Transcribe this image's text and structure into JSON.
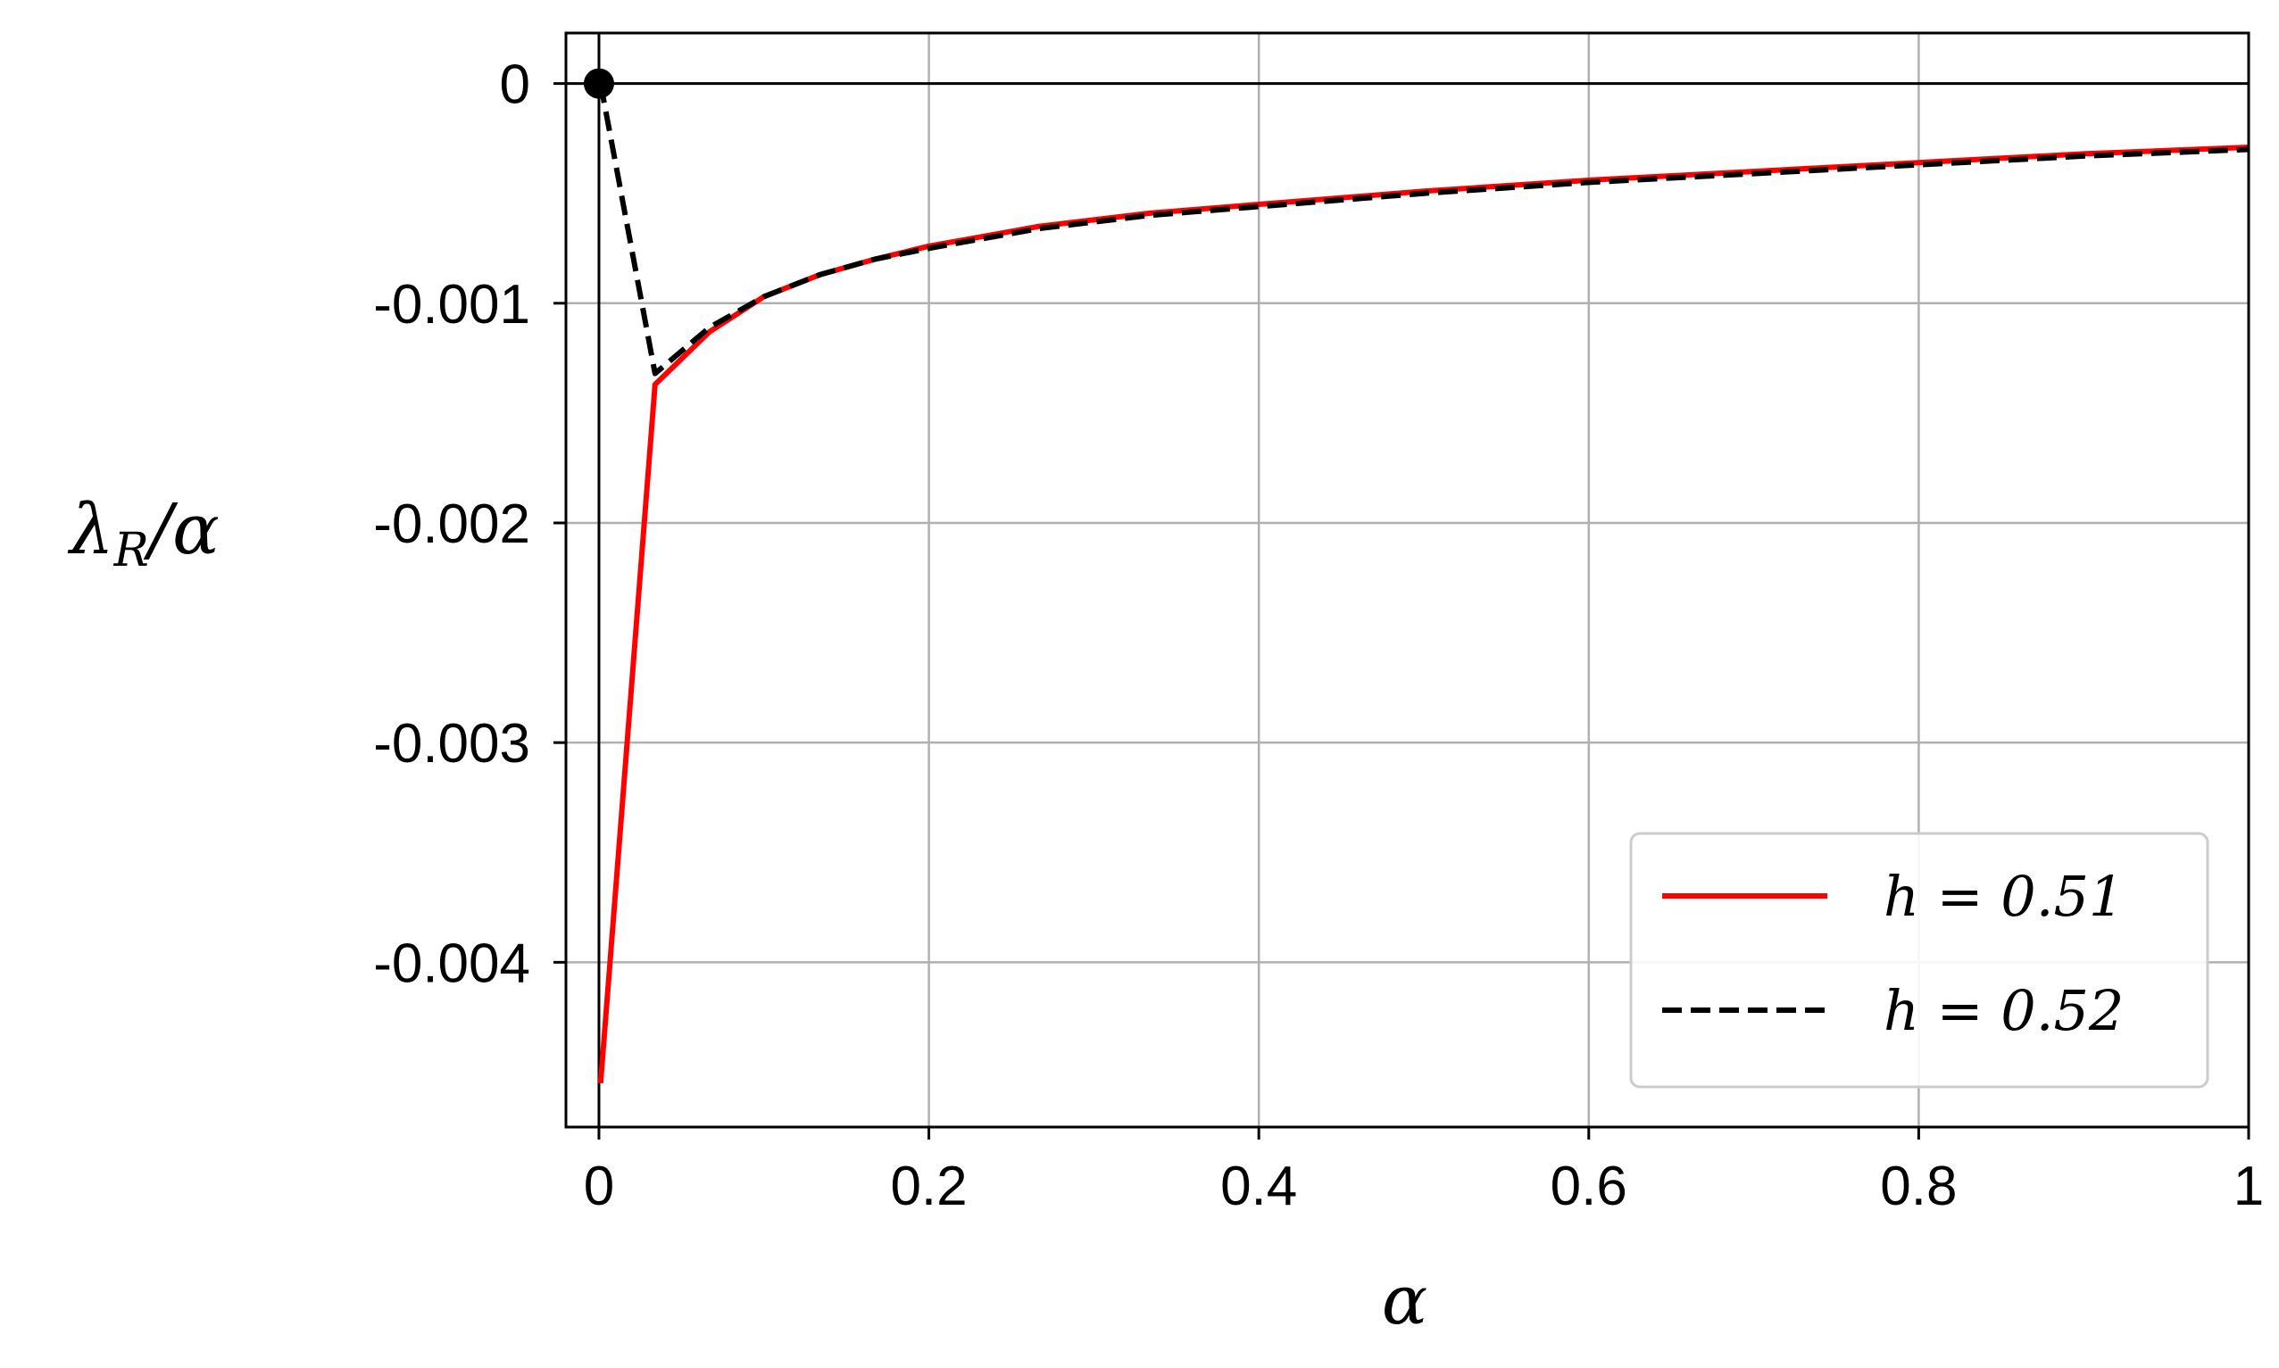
{
  "chart_data": {
    "type": "line",
    "title": "",
    "xlabel": "α",
    "ylabel": "λR/α",
    "xlim": [
      -0.02,
      1.0
    ],
    "ylim": [
      -0.00475,
      0.00023
    ],
    "x_ticks": [
      0,
      0.2,
      0.4,
      0.6,
      0.8,
      1.0
    ],
    "x_tick_labels": [
      "0",
      "0.2",
      "0.4",
      "0.6",
      "0.8",
      "1"
    ],
    "y_ticks": [
      0,
      -0.001,
      -0.002,
      -0.003,
      -0.004
    ],
    "y_tick_labels": [
      "0",
      "-0.001",
      "-0.002",
      "-0.003",
      "-0.004"
    ],
    "grid": true,
    "legend_position": "bottom-right",
    "series": [
      {
        "name": "h = 0.51",
        "color": "#ff0000",
        "dash": "solid",
        "x": [
          0.001,
          0.034,
          0.067,
          0.1,
          0.134,
          0.167,
          0.2,
          0.267,
          0.334,
          0.4,
          0.5,
          0.6,
          0.7,
          0.8,
          0.9,
          1.0
        ],
        "y": [
          -0.00455,
          -0.00137,
          -0.00113,
          -0.00097,
          -0.00087,
          -0.0008,
          -0.00074,
          -0.00065,
          -0.00059,
          -0.00055,
          -0.00049,
          -0.00044,
          -0.0004,
          -0.00036,
          -0.00032,
          -0.00029
        ]
      },
      {
        "name": "h = 0.52",
        "color": "#000000",
        "dash": "dashed",
        "x": [
          0.001,
          0.034,
          0.067,
          0.1,
          0.134,
          0.167,
          0.2,
          0.267,
          0.334,
          0.4,
          0.5,
          0.6,
          0.7,
          0.8,
          0.9,
          1.0
        ],
        "y": [
          0.0,
          -0.00132,
          -0.00111,
          -0.00097,
          -0.00087,
          -0.0008,
          -0.00075,
          -0.00066,
          -0.0006,
          -0.00056,
          -0.0005,
          -0.00045,
          -0.00041,
          -0.00037,
          -0.00033,
          -0.0003
        ]
      }
    ],
    "marker_point": {
      "x": 0.0,
      "y": 0.0,
      "color": "#000000"
    },
    "reference_lines": {
      "horizontal_y": 0,
      "vertical_x": 0
    }
  }
}
